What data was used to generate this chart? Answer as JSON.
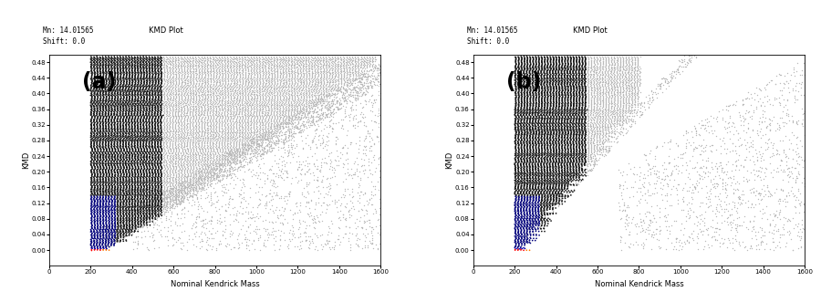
{
  "title": "KMD Plot",
  "header": "Mn: 14.01565\nShift: 0.0",
  "xlabel": "Nominal Kendrick Mass",
  "ylabel": "KMD",
  "xlim": [
    0,
    1600
  ],
  "ylim": [
    -0.04,
    0.5
  ],
  "label_a": "(a)",
  "label_b": "(b)",
  "yticks": [
    0.0,
    0.04,
    0.08,
    0.12,
    0.16,
    0.2,
    0.24,
    0.28,
    0.32,
    0.36,
    0.4,
    0.44,
    0.48
  ],
  "xticks": [
    0,
    200,
    400,
    600,
    800,
    1000,
    1200,
    1400,
    1600
  ],
  "bg_color": "#ffffff",
  "rainbow_colors": [
    "#ff0000",
    "#ff7700",
    "#ffdd00",
    "#00cc00",
    "#0055ff",
    "#8800cc"
  ],
  "dark_blue": "#0000aa",
  "navy": "#00007a",
  "near_black": "#111111",
  "dark_grey": "#555555",
  "mid_grey": "#999999",
  "light_grey": "#bbbbbb"
}
